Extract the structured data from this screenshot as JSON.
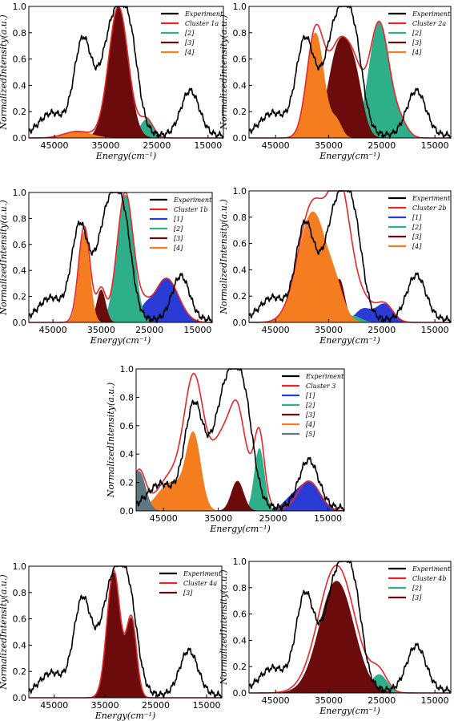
{
  "chart_data": [
    {
      "type": "area",
      "legend": [
        "Experiment",
        "Cluster 1a",
        "[2]",
        "[3]",
        "[4]"
      ],
      "legend_colors": [
        "#000000",
        "#e8262b",
        "#2fae8a",
        "#6b0b0b",
        "#f47d20"
      ],
      "xlabel": "Energy(cm⁻¹)",
      "ylabel": "NormalizedIntensity(a.u.)",
      "xlim": [
        50000,
        12000
      ],
      "ylim": [
        0,
        1.0
      ],
      "xticks": [
        "45000",
        "35000",
        "25000",
        "15000"
      ],
      "yticks": [
        "0.0",
        "0.2",
        "0.4",
        "0.6",
        "0.8",
        "1.0"
      ],
      "legend_position": "top-right",
      "series": [
        {
          "color": "#2fae8a",
          "peaks": [
            [
              27000,
              0.14,
              1300
            ]
          ]
        },
        {
          "color": "#6b0b0b",
          "peaks": [
            [
              32500,
              1.0,
              1900
            ]
          ]
        },
        {
          "color": "#f47d20",
          "peaks": [
            [
              40500,
              0.05,
              2600
            ]
          ]
        }
      ],
      "cluster": {
        "peaks": [
          [
            32500,
            1.0,
            1900
          ],
          [
            27000,
            0.14,
            1300
          ],
          [
            40500,
            0.05,
            2600
          ]
        ]
      }
    },
    {
      "type": "area",
      "legend": [
        "Experiment",
        "Cluster 2a",
        "[2]",
        "[3]",
        "[4]"
      ],
      "legend_colors": [
        "#000000",
        "#e8262b",
        "#2fae8a",
        "#6b0b0b",
        "#f47d20"
      ],
      "xlabel": "Energy(cm⁻¹)",
      "ylabel": "NormalizedIntensity(a.u.)",
      "xlim": [
        50000,
        12000
      ],
      "ylim": [
        0,
        1.0
      ],
      "xticks": [
        "45000",
        "35000",
        "25000",
        "15000"
      ],
      "yticks": [
        "0.0",
        "0.2",
        "0.4",
        "0.6",
        "0.8",
        "1.0"
      ],
      "legend_position": "top-right",
      "series": [
        {
          "color": "#2fae8a",
          "peaks": [
            [
              25500,
              0.88,
              1900
            ],
            [
              21500,
              0.1,
              1400
            ]
          ]
        },
        {
          "color": "#6b0b0b",
          "peaks": [
            [
              33000,
              0.7,
              2000
            ],
            [
              30000,
              0.35,
              1500
            ]
          ]
        },
        {
          "color": "#f47d20",
          "peaks": [
            [
              37500,
              0.8,
              1600
            ],
            [
              33500,
              0.12,
              1000
            ]
          ]
        }
      ],
      "cluster": {
        "peaks": [
          [
            37500,
            0.8,
            1600
          ],
          [
            33000,
            0.7,
            2000
          ],
          [
            30000,
            0.35,
            1500
          ],
          [
            25500,
            0.88,
            1900
          ],
          [
            21500,
            0.1,
            1400
          ]
        ]
      }
    },
    {
      "type": "area",
      "legend": [
        "Experiment",
        "Cluster 1b",
        "[1]",
        "[2]",
        "[3]",
        "[4]"
      ],
      "legend_colors": [
        "#000000",
        "#e8262b",
        "#2b3bd6",
        "#2fae8a",
        "#6b0b0b",
        "#f47d20"
      ],
      "xlabel": "Energy(cm⁻¹)",
      "ylabel": "NormalizedIntensity(a.u.)",
      "xlim": [
        50000,
        12000
      ],
      "ylim": [
        0,
        1.0
      ],
      "xticks": [
        "45000",
        "35000",
        "25000",
        "15000"
      ],
      "yticks": [
        "0.0",
        "0.2",
        "0.4",
        "0.6",
        "0.8",
        "1.0"
      ],
      "legend_position": "top-right",
      "series": [
        {
          "color": "#2b3bd6",
          "peaks": [
            [
              21500,
              0.34,
              2500
            ],
            [
              26000,
              0.08,
              1200
            ]
          ]
        },
        {
          "color": "#2fae8a",
          "peaks": [
            [
              30000,
              0.98,
              1700
            ]
          ]
        },
        {
          "color": "#6b0b0b",
          "peaks": [
            [
              35000,
              0.25,
              900
            ]
          ]
        },
        {
          "color": "#f47d20",
          "peaks": [
            [
              38500,
              0.7,
              1100
            ]
          ]
        }
      ],
      "cluster": {
        "peaks": [
          [
            38500,
            0.74,
            1200
          ],
          [
            35000,
            0.25,
            900
          ],
          [
            30000,
            1.0,
            1700
          ],
          [
            21500,
            0.34,
            2500
          ],
          [
            26000,
            0.08,
            1200
          ]
        ]
      }
    },
    {
      "type": "area",
      "legend": [
        "Experiment",
        "Cluster 2b",
        "[1]",
        "[2]",
        "[3]",
        "[4]"
      ],
      "legend_colors": [
        "#000000",
        "#e8262b",
        "#2b3bd6",
        "#2fae8a",
        "#6b0b0b",
        "#f47d20"
      ],
      "xlabel": "Energy(cm⁻¹)",
      "ylabel": "NormalizedIntensity(a.u.)",
      "xlim": [
        50000,
        12000
      ],
      "ylim": [
        0,
        1.0
      ],
      "xticks": [
        "45000",
        "35000",
        "25000",
        "15000"
      ],
      "yticks": [
        "0.0",
        "0.2",
        "0.4",
        "0.6",
        "0.8",
        "1.0"
      ],
      "legend_position": "top-right",
      "series": [
        {
          "color": "#2b3bd6",
          "peaks": [
            [
              24500,
              0.14,
              1600
            ],
            [
              28500,
              0.1,
              1500
            ]
          ]
        },
        {
          "color": "#2fae8a",
          "peaks": [
            [
              30500,
              0.05,
              1500
            ]
          ]
        },
        {
          "color": "#6b0b0b",
          "peaks": [
            [
              33000,
              0.33,
              1000
            ]
          ]
        },
        {
          "color": "#f47d20",
          "peaks": [
            [
              38000,
              0.84,
              2700
            ],
            [
              33500,
              0.15,
              1500
            ]
          ]
        }
      ],
      "cluster": {
        "peaks": [
          [
            38000,
            0.9,
            2700
          ],
          [
            32800,
            0.95,
            2000
          ],
          [
            28500,
            0.15,
            1800
          ],
          [
            24500,
            0.14,
            1600
          ]
        ]
      }
    },
    {
      "type": "area",
      "legend": [
        "Experiment",
        "Cluster 3",
        "[1]",
        "[2]",
        "[3]",
        "[4]",
        "[5]"
      ],
      "legend_colors": [
        "#000000",
        "#e8262b",
        "#2b3bd6",
        "#2fae8a",
        "#6b0b0b",
        "#f47d20",
        "#5f7780"
      ],
      "xlabel": "Energy(cm⁻¹)",
      "ylabel": "NormalizedIntensity(a.u.)",
      "xlim": [
        50000,
        12000
      ],
      "ylim": [
        0,
        1.0
      ],
      "xticks": [
        "45000",
        "35000",
        "25000",
        "15000"
      ],
      "yticks": [
        "0.0",
        "0.2",
        "0.4",
        "0.6",
        "0.8",
        "1.0"
      ],
      "legend_position": "top-right",
      "series": [
        {
          "color": "#2b3bd6",
          "peaks": [
            [
              18500,
              0.2,
              2000
            ],
            [
              22000,
              0.06,
              1500
            ]
          ]
        },
        {
          "color": "#2fae8a",
          "peaks": [
            [
              27500,
              0.44,
              900
            ]
          ]
        },
        {
          "color": "#6b0b0b",
          "peaks": [
            [
              31500,
              0.21,
              1100
            ]
          ]
        },
        {
          "color": "#f47d20",
          "peaks": [
            [
              39500,
              0.5,
              1300
            ],
            [
              43500,
              0.2,
              2500
            ]
          ]
        },
        {
          "color": "#5f7780",
          "peaks": [
            [
              49500,
              0.28,
              1200
            ]
          ]
        }
      ],
      "cluster": {
        "peaks": [
          [
            39500,
            0.82,
            1700
          ],
          [
            33000,
            0.62,
            3200
          ],
          [
            27500,
            0.44,
            900
          ],
          [
            31500,
            0.21,
            1100
          ],
          [
            18500,
            0.21,
            2000
          ],
          [
            43500,
            0.25,
            2500
          ],
          [
            49500,
            0.28,
            1200
          ]
        ]
      }
    },
    {
      "type": "area",
      "legend": [
        "Experiment",
        "Cluster 4a",
        "[3]"
      ],
      "legend_colors": [
        "#000000",
        "#e8262b",
        "#6b0b0b"
      ],
      "xlabel": "Energy(cm⁻¹)",
      "ylabel": "NormalizedIntensity(a.u.)",
      "xlim": [
        50000,
        12000
      ],
      "ylim": [
        0,
        1.0
      ],
      "xticks": [
        "45000",
        "35000",
        "25000",
        "15000"
      ],
      "yticks": [
        "0.0",
        "0.2",
        "0.4",
        "0.6",
        "0.8",
        "1.0"
      ],
      "legend_position": "top-right",
      "series": [
        {
          "color": "#6b0b0b",
          "peaks": [
            [
              33300,
              0.95,
              1300
            ],
            [
              29800,
              0.58,
              1000
            ]
          ]
        }
      ],
      "cluster": {
        "peaks": [
          [
            33300,
            0.97,
            1300
          ],
          [
            29800,
            0.6,
            1000
          ]
        ]
      }
    },
    {
      "type": "area",
      "legend": [
        "Experiment",
        "Cluster 4b",
        "[2]",
        "[3]"
      ],
      "legend_colors": [
        "#000000",
        "#e8262b",
        "#2fae8a",
        "#6b0b0b"
      ],
      "xlabel": "Energy(cm⁻¹)",
      "ylabel": "NormalizedIntensity(a.u.)",
      "xlim": [
        50000,
        12000
      ],
      "ylim": [
        0,
        1.0
      ],
      "xticks": [
        "45000",
        "35000",
        "25000",
        "15000"
      ],
      "yticks": [
        "0.0",
        "0.2",
        "0.4",
        "0.6",
        "0.8",
        "1.0"
      ],
      "legend_position": "top-right",
      "series": [
        {
          "color": "#2fae8a",
          "peaks": [
            [
              25500,
              0.14,
              1500
            ]
          ]
        },
        {
          "color": "#6b0b0b",
          "peaks": [
            [
              33500,
              0.85,
              3200
            ]
          ]
        }
      ],
      "cluster": {
        "peaks": [
          [
            33500,
            0.97,
            3400
          ],
          [
            25500,
            0.14,
            1500
          ]
        ]
      }
    }
  ]
}
